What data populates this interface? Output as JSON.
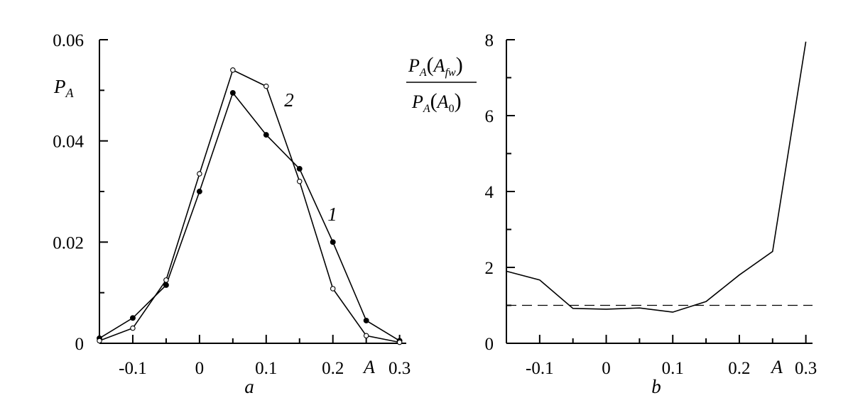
{
  "chart_data": [
    {
      "type": "line",
      "panel_label": "a",
      "ylabel_main": "P",
      "ylabel_sub": "A",
      "xlabel_inline": "A",
      "xlim": [
        -0.15,
        0.31
      ],
      "ylim": [
        0,
        0.06
      ],
      "xticks": [
        -0.1,
        0,
        0.1,
        0.2,
        0.3
      ],
      "xtick_labels": [
        "-0.1",
        "0",
        "0.1",
        "0.2",
        "0.3"
      ],
      "yticks": [
        0,
        0.02,
        0.04,
        0.06
      ],
      "ytick_labels": [
        "0",
        "0.02",
        "0.04",
        "0.06"
      ],
      "series": [
        {
          "name": "1",
          "marker": "filled",
          "x": [
            -0.15,
            -0.1,
            -0.05,
            0,
            0.05,
            0.1,
            0.15,
            0.2,
            0.25,
            0.3
          ],
          "y": [
            0.001,
            0.005,
            0.0115,
            0.03,
            0.0495,
            0.0412,
            0.0345,
            0.02,
            0.0045,
            0.0005
          ]
        },
        {
          "name": "2",
          "marker": "open",
          "x": [
            -0.15,
            -0.1,
            -0.05,
            0,
            0.05,
            0.1,
            0.15,
            0.2,
            0.25,
            0.3
          ],
          "y": [
            0.0005,
            0.003,
            0.0125,
            0.0335,
            0.054,
            0.0508,
            0.032,
            0.0108,
            0.0015,
            0.0002
          ]
        }
      ]
    },
    {
      "type": "line",
      "panel_label": "b",
      "xlabel_inline": "A",
      "ylabel_parts": {
        "num_p": "P",
        "num_p_sub": "A",
        "num_arg": "A",
        "num_arg_sub": "fw",
        "den_p": "P",
        "den_p_sub": "A",
        "den_arg": "A",
        "den_arg_sub": "0"
      },
      "xlim": [
        -0.15,
        0.31
      ],
      "ylim": [
        0,
        8
      ],
      "xticks": [
        -0.1,
        0,
        0.1,
        0.2,
        0.3
      ],
      "xtick_labels": [
        "-0.1",
        "0",
        "0.1",
        "0.2",
        "0.3"
      ],
      "yticks": [
        0,
        2,
        4,
        6,
        8
      ],
      "ytick_labels": [
        "0",
        "2",
        "4",
        "6",
        "8"
      ],
      "reference_line": {
        "y": 1,
        "style": "dashed"
      },
      "series": [
        {
          "x": [
            -0.15,
            -0.1,
            -0.05,
            0,
            0.05,
            0.1,
            0.15,
            0.2,
            0.25,
            0.3
          ],
          "y": [
            1.9,
            1.67,
            0.92,
            0.9,
            0.93,
            0.82,
            1.1,
            1.8,
            2.42,
            7.95
          ]
        }
      ]
    }
  ]
}
